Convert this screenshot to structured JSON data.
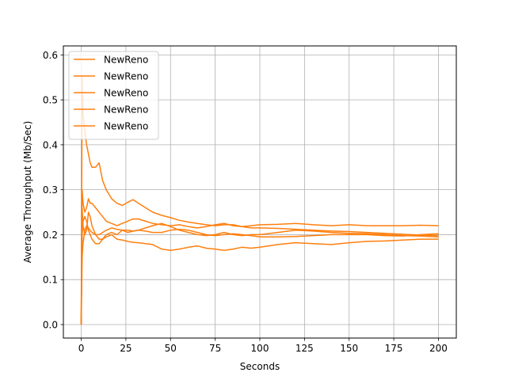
{
  "chart_data": {
    "type": "line",
    "xlabel": "Seconds",
    "ylabel": "Average Throughput (Mb/Sec)",
    "xlim": [
      -10,
      210
    ],
    "ylim": [
      -0.03,
      0.62
    ],
    "xticks": [
      0,
      25,
      50,
      75,
      100,
      125,
      150,
      175,
      200
    ],
    "yticks": [
      0.0,
      0.1,
      0.2,
      0.3,
      0.4,
      0.5,
      0.6
    ],
    "grid": true,
    "legend_position": "top-left",
    "line_color": "#ff7f0e",
    "series": [
      {
        "name": "NewReno",
        "x": [
          0,
          0.5,
          1,
          2,
          3,
          4,
          5,
          6,
          8,
          10,
          12,
          14,
          17,
          20,
          23,
          26,
          29,
          32,
          36,
          40,
          45,
          50,
          55,
          60,
          65,
          70,
          75,
          80,
          85,
          90,
          95,
          100,
          110,
          120,
          130,
          140,
          150,
          160,
          170,
          180,
          190,
          200
        ],
        "y": [
          0.0,
          0.55,
          0.47,
          0.43,
          0.4,
          0.38,
          0.36,
          0.35,
          0.35,
          0.36,
          0.32,
          0.3,
          0.28,
          0.27,
          0.265,
          0.272,
          0.278,
          0.27,
          0.26,
          0.25,
          0.243,
          0.238,
          0.232,
          0.228,
          0.225,
          0.222,
          0.22,
          0.222,
          0.222,
          0.218,
          0.215,
          0.215,
          0.214,
          0.212,
          0.21,
          0.208,
          0.207,
          0.205,
          0.203,
          0.201,
          0.199,
          0.198
        ]
      },
      {
        "name": "NewReno",
        "x": [
          0,
          0.5,
          1,
          2,
          3,
          4,
          5,
          6,
          8,
          10,
          12,
          14,
          17,
          20,
          23,
          26,
          29,
          32,
          36,
          40,
          45,
          50,
          55,
          60,
          65,
          70,
          75,
          80,
          85,
          90,
          95,
          100,
          110,
          120,
          130,
          140,
          150,
          160,
          170,
          180,
          190,
          200
        ],
        "y": [
          0.0,
          0.3,
          0.27,
          0.25,
          0.26,
          0.28,
          0.27,
          0.27,
          0.26,
          0.25,
          0.24,
          0.23,
          0.225,
          0.22,
          0.225,
          0.23,
          0.235,
          0.235,
          0.23,
          0.225,
          0.222,
          0.22,
          0.222,
          0.218,
          0.215,
          0.218,
          0.222,
          0.225,
          0.22,
          0.218,
          0.22,
          0.222,
          0.223,
          0.225,
          0.222,
          0.22,
          0.222,
          0.22,
          0.22,
          0.22,
          0.221,
          0.22
        ]
      },
      {
        "name": "NewReno",
        "x": [
          0,
          0.5,
          1,
          2,
          3,
          4,
          5,
          6,
          8,
          10,
          12,
          14,
          17,
          20,
          23,
          26,
          29,
          32,
          36,
          40,
          45,
          50,
          55,
          60,
          65,
          70,
          75,
          80,
          85,
          90,
          95,
          100,
          110,
          120,
          130,
          140,
          150,
          160,
          170,
          180,
          190,
          200
        ],
        "y": [
          0.0,
          0.26,
          0.22,
          0.2,
          0.21,
          0.25,
          0.24,
          0.22,
          0.2,
          0.19,
          0.19,
          0.2,
          0.205,
          0.2,
          0.21,
          0.21,
          0.208,
          0.21,
          0.215,
          0.22,
          0.225,
          0.218,
          0.21,
          0.205,
          0.2,
          0.198,
          0.2,
          0.205,
          0.2,
          0.198,
          0.2,
          0.2,
          0.205,
          0.21,
          0.208,
          0.205,
          0.203,
          0.202,
          0.2,
          0.198,
          0.197,
          0.195
        ]
      },
      {
        "name": "NewReno",
        "x": [
          0,
          0.5,
          1,
          2,
          3,
          4,
          5,
          6,
          8,
          10,
          12,
          14,
          17,
          20,
          23,
          26,
          29,
          32,
          36,
          40,
          45,
          50,
          55,
          60,
          65,
          70,
          75,
          80,
          85,
          90,
          95,
          100,
          110,
          120,
          130,
          140,
          150,
          160,
          170,
          180,
          190,
          200
        ],
        "y": [
          0.0,
          0.2,
          0.23,
          0.24,
          0.23,
          0.21,
          0.2,
          0.19,
          0.18,
          0.18,
          0.19,
          0.195,
          0.2,
          0.19,
          0.188,
          0.185,
          0.183,
          0.182,
          0.18,
          0.178,
          0.168,
          0.165,
          0.168,
          0.172,
          0.175,
          0.17,
          0.168,
          0.165,
          0.168,
          0.172,
          0.17,
          0.172,
          0.178,
          0.182,
          0.18,
          0.178,
          0.182,
          0.185,
          0.186,
          0.188,
          0.19,
          0.19
        ]
      },
      {
        "name": "NewReno",
        "x": [
          0,
          0.5,
          1,
          2,
          3,
          4,
          5,
          6,
          8,
          10,
          12,
          14,
          17,
          20,
          23,
          26,
          29,
          32,
          36,
          40,
          45,
          50,
          55,
          60,
          65,
          70,
          75,
          80,
          85,
          90,
          95,
          100,
          110,
          120,
          130,
          140,
          150,
          160,
          170,
          180,
          190,
          200
        ],
        "y": [
          0.0,
          0.15,
          0.18,
          0.21,
          0.22,
          0.215,
          0.21,
          0.205,
          0.2,
          0.2,
          0.205,
          0.21,
          0.215,
          0.212,
          0.21,
          0.205,
          0.208,
          0.21,
          0.208,
          0.205,
          0.205,
          0.21,
          0.212,
          0.21,
          0.205,
          0.2,
          0.198,
          0.2,
          0.202,
          0.2,
          0.198,
          0.195,
          0.195,
          0.196,
          0.198,
          0.2,
          0.2,
          0.2,
          0.198,
          0.197,
          0.2,
          0.202
        ]
      }
    ]
  }
}
